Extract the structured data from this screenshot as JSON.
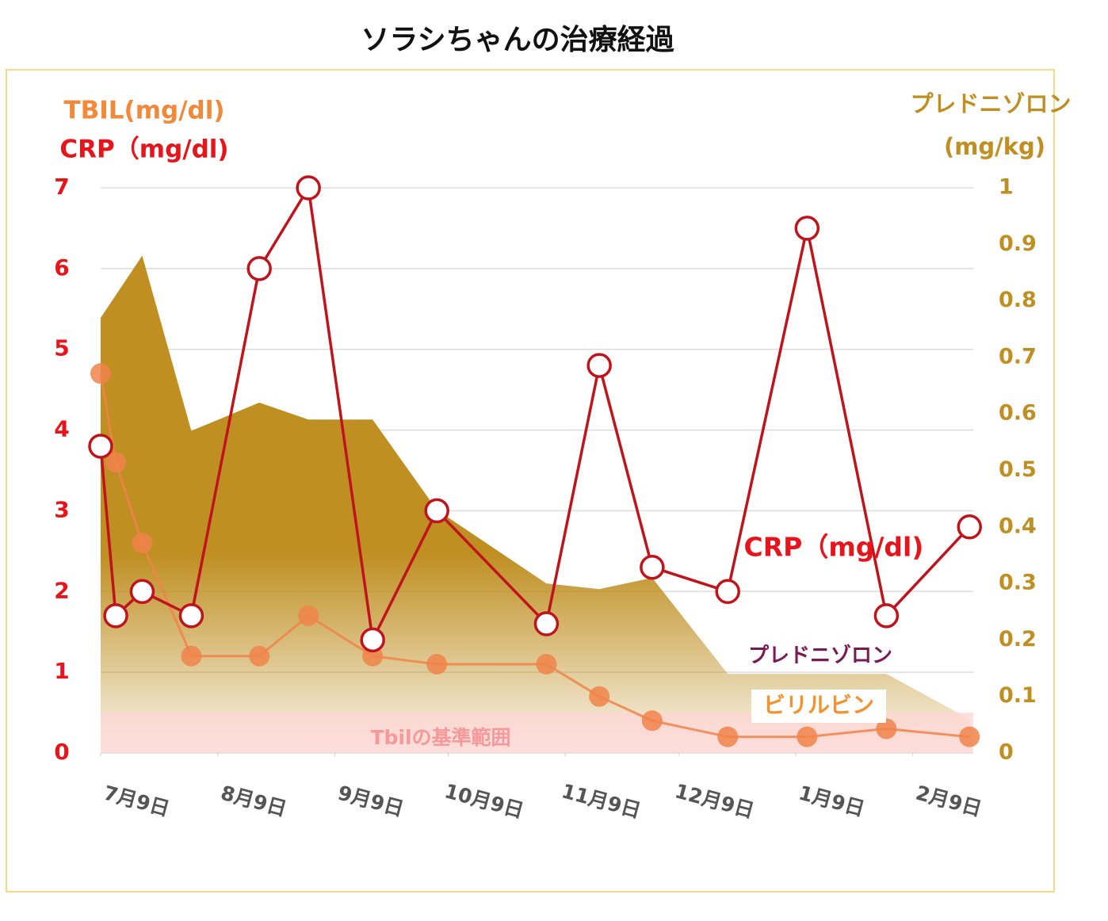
{
  "chart_data": {
    "type": "line",
    "title": "ソラシちゃんの治療経過",
    "ylabel": [
      "TBIL(mg/dl)",
      "CRP（mg/dl)"
    ],
    "y2label": [
      "プレドニゾロン",
      "(mg/kg)"
    ],
    "x": [
      0,
      4,
      11,
      24,
      42,
      55,
      72,
      89,
      118,
      132,
      146,
      166,
      187,
      208,
      230
    ],
    "xlim": [
      0,
      231
    ],
    "xticks": [
      {
        "value": 0,
        "label": "7月9日"
      },
      {
        "value": 31,
        "label": "8月9日"
      },
      {
        "value": 62,
        "label": "9月9日"
      },
      {
        "value": 92,
        "label": "10月9日"
      },
      {
        "value": 123,
        "label": "11月9日"
      },
      {
        "value": 153,
        "label": "12月9日"
      },
      {
        "value": 184,
        "label": "1月9日"
      },
      {
        "value": 215,
        "label": "2月9日"
      }
    ],
    "ylim": [
      0,
      7
    ],
    "yticks": [
      0,
      1,
      2,
      3,
      4,
      5,
      6,
      7
    ],
    "y2lim": [
      0,
      1
    ],
    "y2ticks": [
      0,
      0.1,
      0.2,
      0.3,
      0.4,
      0.5,
      0.6,
      0.7,
      0.8,
      0.9,
      1
    ],
    "grid": true,
    "series": [
      {
        "name": "プレドニゾロン",
        "type": "area",
        "axis": "y2",
        "color": "#bf8f22",
        "values": [
          0.77,
          0.81,
          0.88,
          0.57,
          0.62,
          0.59,
          0.59,
          0.43,
          0.3,
          0.29,
          0.31,
          0.14,
          0.14,
          0.14,
          0.06
        ]
      },
      {
        "name": "ビリルビン",
        "type": "line",
        "color": "#f0844a",
        "values": [
          4.7,
          3.6,
          2.6,
          1.2,
          1.2,
          1.7,
          1.2,
          1.1,
          1.1,
          0.7,
          0.4,
          0.2,
          0.2,
          0.3,
          0.2
        ]
      },
      {
        "name": "CRP（mg/dl)",
        "type": "line",
        "color": "#c0141c",
        "values": [
          3.8,
          1.7,
          2,
          1.7,
          6,
          7,
          1.4,
          3,
          1.6,
          4.8,
          2.3,
          2,
          6.5,
          1.7,
          2.8
        ]
      }
    ],
    "reference_band": {
      "label": "Tbilの基準範囲",
      "range": [
        0,
        0.5
      ],
      "color": "#ffd6d6"
    }
  }
}
